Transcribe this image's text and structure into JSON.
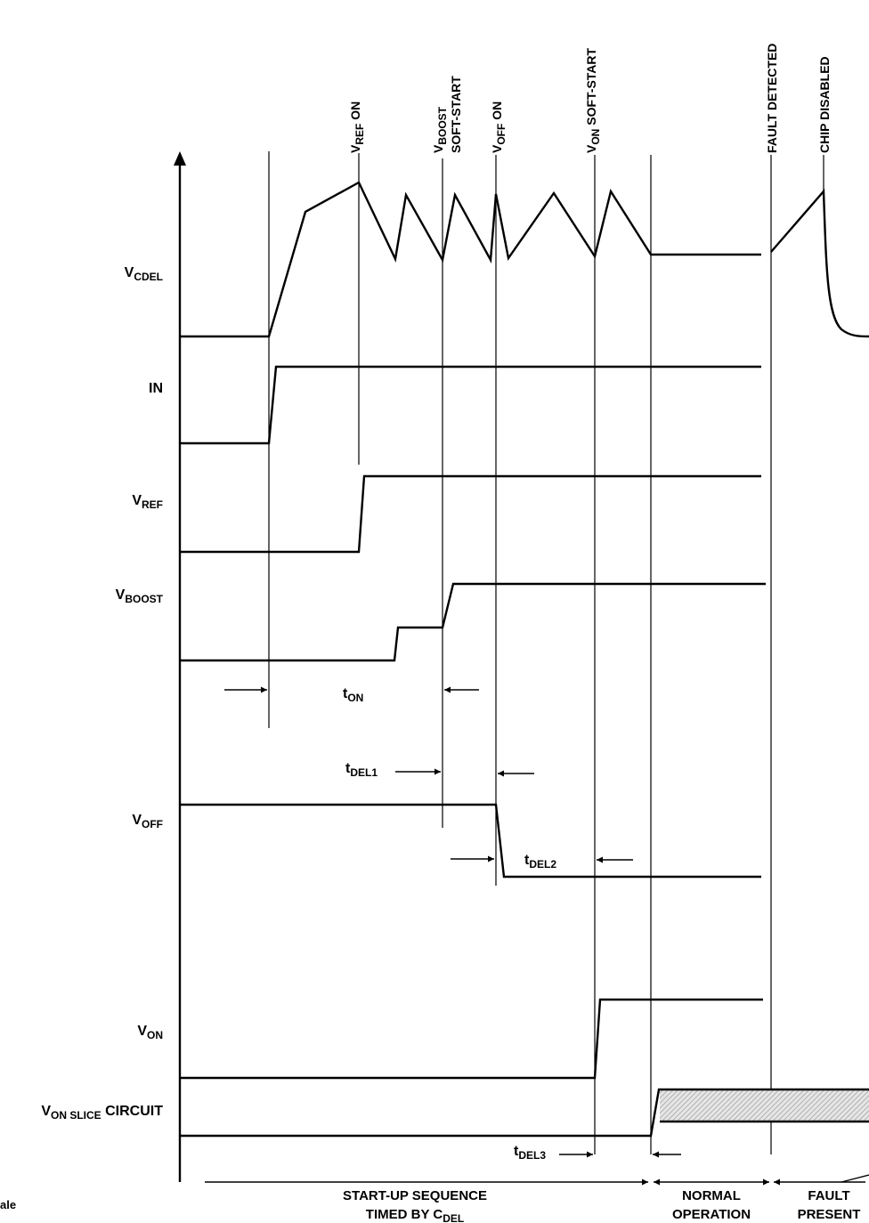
{
  "signals": {
    "vcdel": {
      "main": "V",
      "sub": "CDEL",
      "rest": ""
    },
    "in": {
      "main": "IN"
    },
    "vref": {
      "main": "V",
      "sub": "REF",
      "rest": ""
    },
    "vboost": {
      "main": "V",
      "sub": "BOOST",
      "rest": ""
    },
    "voff": {
      "main": "V",
      "sub": "OFF",
      "rest": ""
    },
    "von": {
      "main": "V",
      "sub": "ON",
      "rest": ""
    },
    "vonslice": {
      "main": "V",
      "sub": "ON SLICE",
      "rest": " CIRCUIT"
    }
  },
  "events": {
    "vref_on": {
      "main": "V",
      "sub": "REF",
      "rest": " ON"
    },
    "vboost_ss": {
      "main": "V",
      "sub": "BOOST",
      "line2": "SOFT-START"
    },
    "voff_on": {
      "main": "V",
      "sub": "OFF",
      "rest": " ON"
    },
    "von_ss": {
      "main": "V",
      "sub": "ON",
      "rest": " SOFT-START"
    },
    "fault_detected": "FAULT DETECTED",
    "chip_disabled": "CHIP DISABLED"
  },
  "timings": {
    "ton": {
      "main": "t",
      "sub": "ON"
    },
    "tdel1": {
      "main": "t",
      "sub": "DEL1"
    },
    "tdel2": {
      "main": "t",
      "sub": "DEL2"
    },
    "tdel3": {
      "main": "t",
      "sub": "DEL3"
    }
  },
  "footer": {
    "startup_line1": "START-UP SEQUENCE",
    "startup_line2_main": "TIMED BY C",
    "startup_line2_sub": "DEL",
    "normal_line1": "NORMAL",
    "normal_line2": "OPERATION",
    "fault_line1": "FAULT",
    "fault_line2": "PRESENT",
    "cut_text": "ale"
  },
  "colors": {
    "ink": "#000000",
    "hatch": "#c8c8c8"
  }
}
